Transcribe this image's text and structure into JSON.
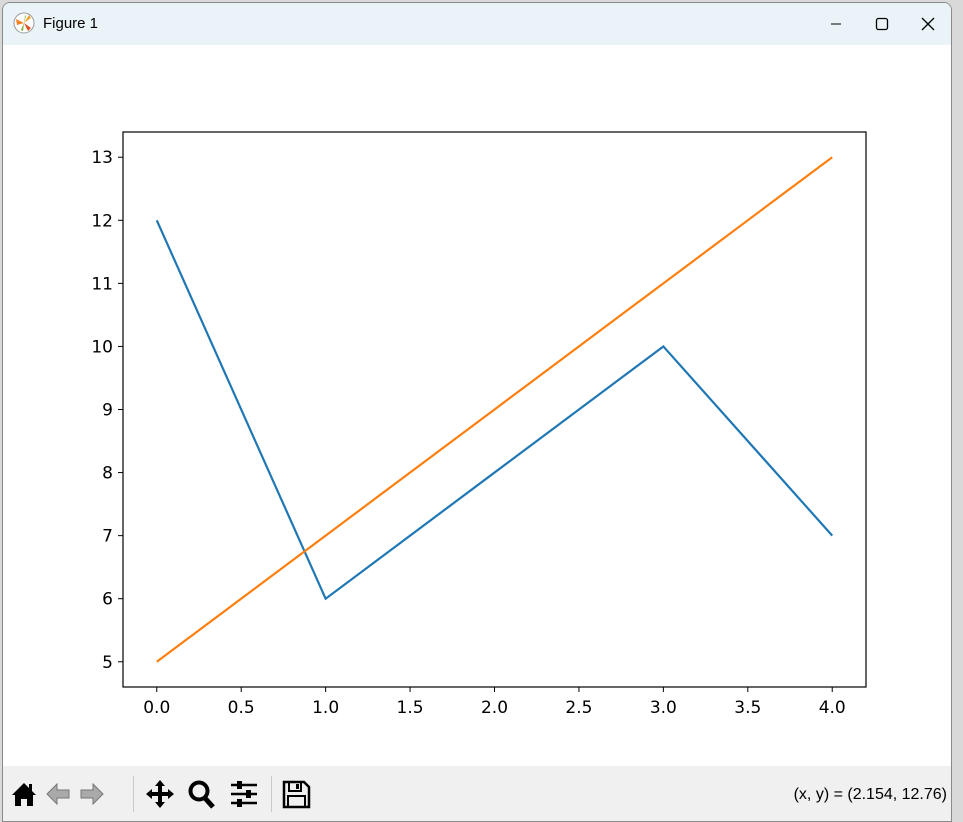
{
  "window": {
    "title": "Figure 1",
    "icon": "matplotlib-logo-icon"
  },
  "window_controls": [
    "minimize-icon",
    "maximize-icon",
    "close-icon"
  ],
  "toolbar": {
    "buttons": [
      "home-icon",
      "back-icon",
      "forward-icon",
      "pan-icon",
      "zoom-icon",
      "configure-subplots-icon",
      "save-icon"
    ],
    "coords": "(x, y) = (2.154, 12.76)"
  },
  "chart_data": {
    "type": "line",
    "title": "",
    "xlabel": "",
    "ylabel": "",
    "xlim": [
      -0.2,
      4.2
    ],
    "ylim": [
      4.6,
      13.4
    ],
    "xticks": [
      "0.0",
      "0.5",
      "1.0",
      "1.5",
      "2.0",
      "2.5",
      "3.0",
      "3.5",
      "4.0"
    ],
    "xtick_values": [
      0,
      0.5,
      1,
      1.5,
      2,
      2.5,
      3,
      3.5,
      4
    ],
    "yticks": [
      "5",
      "6",
      "7",
      "8",
      "9",
      "10",
      "11",
      "12",
      "13"
    ],
    "ytick_values": [
      5,
      6,
      7,
      8,
      9,
      10,
      11,
      12,
      13
    ],
    "grid": false,
    "x": [
      0,
      1,
      2,
      3,
      4
    ],
    "series": [
      {
        "values": [
          12,
          6,
          8,
          10,
          7
        ],
        "color": "#1f77b4"
      },
      {
        "values": [
          5,
          7,
          9,
          11,
          13
        ],
        "color": "#ff7f0e"
      }
    ]
  }
}
